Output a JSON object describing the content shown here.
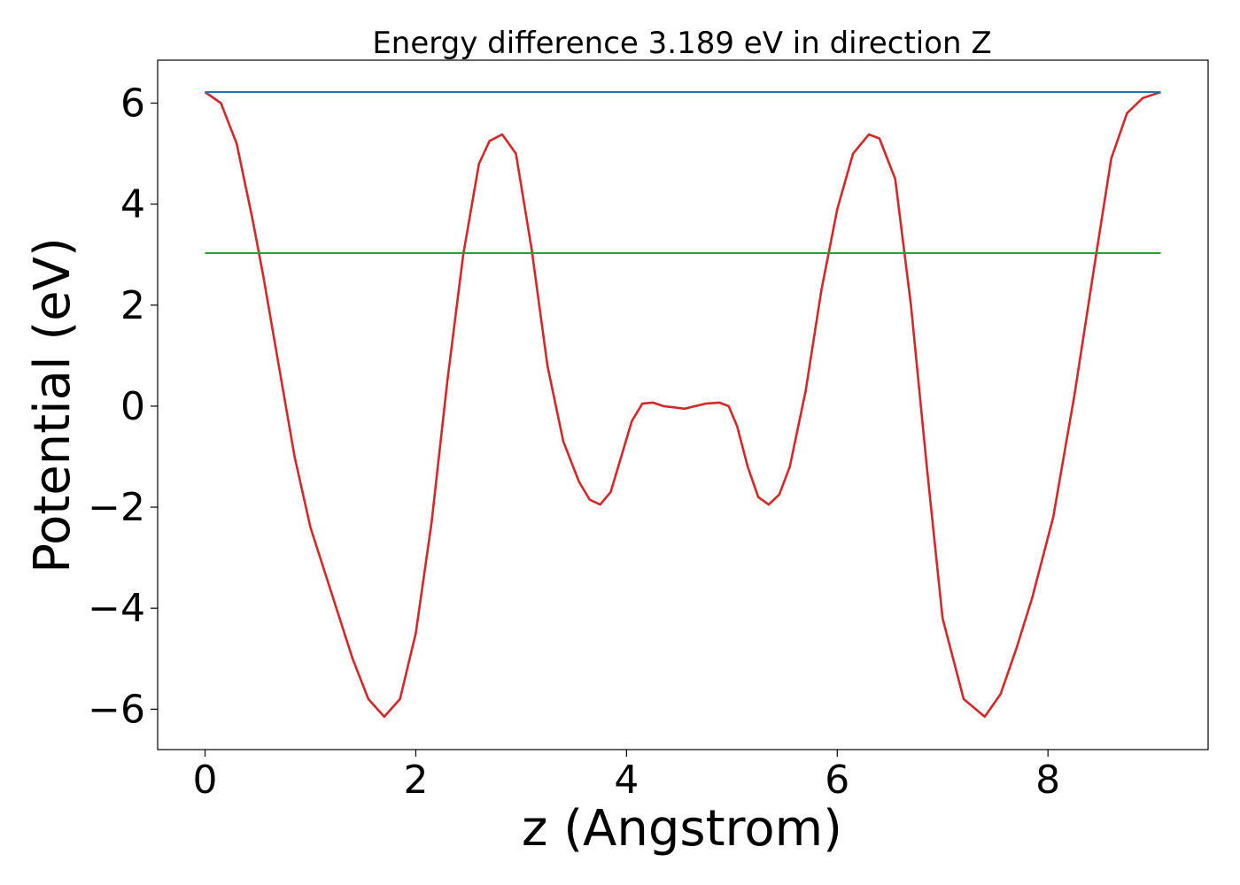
{
  "chart_data": {
    "type": "line",
    "title": "Energy difference 3.189 eV in direction Z",
    "xlabel": "z (Angstrom)",
    "ylabel": "Potential (eV)",
    "xlim": [
      -0.45,
      9.52
    ],
    "ylim": [
      -6.8,
      6.85
    ],
    "grid": false,
    "x_ticks": [
      0,
      2,
      4,
      6,
      8
    ],
    "y_ticks": [
      6,
      4,
      2,
      0,
      -2,
      -4,
      -6
    ],
    "x_tick_labels": [
      "0",
      "2",
      "4",
      "6",
      "8"
    ],
    "y_tick_labels": [
      "6",
      "4",
      "2",
      "0",
      "−2",
      "−4",
      "−6"
    ],
    "series": [
      {
        "color": "#d62728",
        "x": [
          0,
          0.15,
          0.3,
          0.45,
          0.55,
          0.7,
          0.85,
          1.0,
          1.2,
          1.4,
          1.55,
          1.7,
          1.85,
          2.0,
          2.15,
          2.3,
          2.45,
          2.6,
          2.7,
          2.82,
          2.95,
          3.1,
          3.25,
          3.4,
          3.55,
          3.65,
          3.75,
          3.85,
          3.95,
          4.05,
          4.15,
          4.25,
          4.35,
          4.55,
          4.75,
          4.88,
          4.97,
          5.05,
          5.15,
          5.25,
          5.35,
          5.45,
          5.55,
          5.7,
          5.85,
          6.0,
          6.15,
          6.3,
          6.4,
          6.55,
          6.7,
          6.85,
          7.0,
          7.2,
          7.4,
          7.55,
          7.7,
          7.85,
          8.05,
          8.25,
          8.45,
          8.6,
          8.75,
          8.9,
          9.07
        ],
        "y": [
          6.22,
          6.0,
          5.2,
          3.7,
          2.6,
          0.8,
          -1.0,
          -2.4,
          -3.7,
          -5.0,
          -5.8,
          -6.15,
          -5.8,
          -4.5,
          -2.3,
          0.5,
          3.0,
          4.8,
          5.25,
          5.38,
          5.0,
          3.1,
          0.8,
          -0.7,
          -1.5,
          -1.85,
          -1.95,
          -1.7,
          -1.0,
          -0.3,
          0.05,
          0.07,
          0.0,
          -0.05,
          0.05,
          0.07,
          0.0,
          -0.4,
          -1.2,
          -1.8,
          -1.95,
          -1.75,
          -1.2,
          0.3,
          2.3,
          3.9,
          5.0,
          5.38,
          5.3,
          4.5,
          2.0,
          -1.2,
          -4.2,
          -5.8,
          -6.15,
          -5.7,
          -4.8,
          -3.8,
          -2.2,
          0.2,
          2.9,
          4.9,
          5.8,
          6.1,
          6.22
        ]
      },
      {
        "color": "#1f77b4",
        "x": [
          0,
          9.07
        ],
        "y": [
          6.22,
          6.22
        ]
      },
      {
        "color": "#2ca02c",
        "x": [
          0,
          9.07
        ],
        "y": [
          3.03,
          3.03
        ]
      }
    ]
  }
}
